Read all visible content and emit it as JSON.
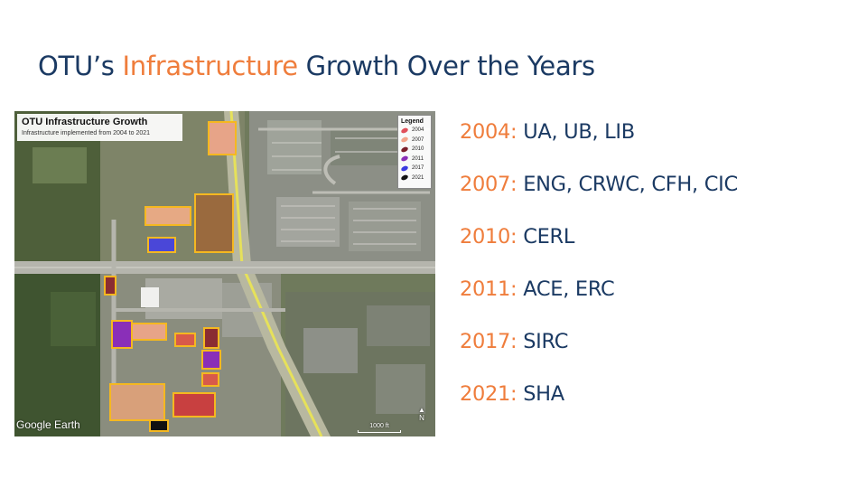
{
  "slide": {
    "title_part1": "OTU’s ",
    "title_accent": "Infrastructure",
    "title_part2": " Growth Over the Years"
  },
  "map": {
    "panel_title": "OTU Infrastructure Growth",
    "panel_subtitle": "Infrastructure implemented from 2004 to 2021",
    "legend_title": "Legend",
    "legend": [
      {
        "label": "2004",
        "color": "#e0505a"
      },
      {
        "label": "2007",
        "color": "#f2a58a"
      },
      {
        "label": "2010",
        "color": "#7a1f2a"
      },
      {
        "label": "2011",
        "color": "#8a2fb8"
      },
      {
        "label": "2017",
        "color": "#3a3ae0"
      },
      {
        "label": "2021",
        "color": "#111111"
      }
    ],
    "attribution": "Google Earth",
    "scale_label": "1000 ft",
    "north_label": "N",
    "building_labels": [
      "UA",
      "UB",
      "LIB",
      "ENG",
      "CRWC",
      "CFH",
      "CIC",
      "CERL",
      "ACE",
      "ERC",
      "SIRC",
      "SHA"
    ]
  },
  "timeline": [
    {
      "year": "2004:",
      "buildings": "UA, UB, LIB"
    },
    {
      "year": "2007:",
      "buildings": "ENG, CRWC, CFH, CIC"
    },
    {
      "year": "2010:",
      "buildings": "CERL"
    },
    {
      "year": "2011:",
      "buildings": "ACE, ERC"
    },
    {
      "year": "2017:",
      "buildings": "SIRC"
    },
    {
      "year": "2021:",
      "buildings": "SHA"
    }
  ],
  "colors": {
    "accent": "#ef7d3c",
    "navy": "#1b3a63",
    "highlight_outline": "#f5b820"
  }
}
